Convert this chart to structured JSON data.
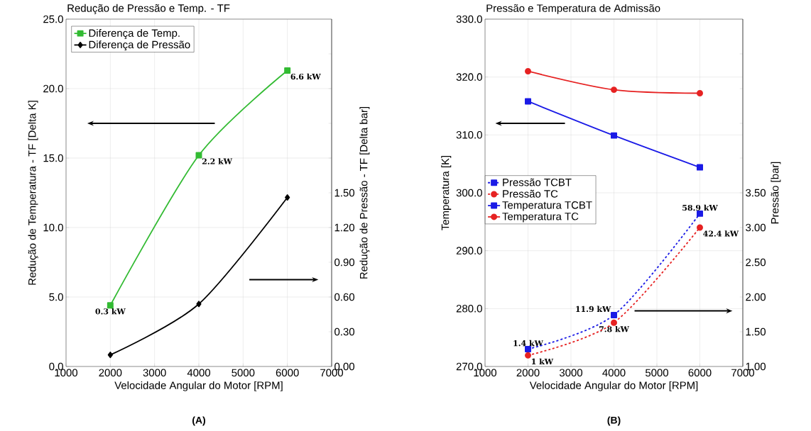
{
  "chart_data": [
    {
      "type": "line",
      "title": "Redução de Pressão e Temp. - TF",
      "xlabel": "Velocidade Angular do Motor [RPM]",
      "ylabel": "Redução de Temperatura - TF [Delta K]",
      "y2label": "Redução de Pressão - TF [Delta bar]",
      "x": [
        2000,
        4000,
        6000
      ],
      "xlim": [
        1000,
        7000
      ],
      "xticks": [
        1000,
        2000,
        3000,
        4000,
        5000,
        6000,
        7000
      ],
      "ylim": [
        0,
        25
      ],
      "yticks": [
        {
          "value": 0,
          "label": "0.0"
        },
        {
          "value": 5,
          "label": "5.0"
        },
        {
          "value": 10,
          "label": "10.0"
        },
        {
          "value": 15,
          "label": "15.0"
        },
        {
          "value": 20,
          "label": "20.0"
        },
        {
          "value": 25,
          "label": "25.0"
        }
      ],
      "y2lim": [
        0,
        3
      ],
      "y2ticks": [
        {
          "value": 0,
          "label": "0.00"
        },
        {
          "value": 0.3,
          "label": "0.30"
        },
        {
          "value": 0.6,
          "label": "0.60"
        },
        {
          "value": 0.9,
          "label": "0.90"
        },
        {
          "value": 1.2,
          "label": "1.20"
        },
        {
          "value": 1.5,
          "label": "1.50"
        },
        {
          "value": 1.8,
          "label": null
        },
        {
          "value": 2.1,
          "label": null
        },
        {
          "value": 2.4,
          "label": null
        },
        {
          "value": 2.7,
          "label": null
        }
      ],
      "grid": true,
      "legend": "top left",
      "series": [
        {
          "name": "Diferença de Temp.",
          "color": "#33bb33",
          "values": [
            4.4,
            15.2,
            21.3
          ],
          "marker": "square",
          "line_style": "solid"
        },
        {
          "name": "Diferença de Pressão",
          "color": "#000000",
          "values": [
            0.1,
            0.54,
            1.46
          ],
          "axis": "y2",
          "marker": "diamond",
          "line_style": "solid"
        }
      ],
      "annotations": [
        "(A)",
        {
          "text": "0.3 kW",
          "x": 2000,
          "y": 4.4
        },
        {
          "text": "2.2 kW",
          "x": 4000,
          "y": 15.2
        },
        {
          "text": "6.6 kW",
          "x": 6000,
          "y": 21.3
        }
      ]
    },
    {
      "type": "line",
      "title": "Pressão e Temperatura de Admissão",
      "xlabel": "Velocidade Angular do Motor [RPM]",
      "ylabel": "Temperatura [K]",
      "y2label": "Pressão [bar]",
      "x": [
        2000,
        4000,
        6000
      ],
      "xlim": [
        1000,
        7000
      ],
      "xticks": [
        1000,
        2000,
        3000,
        4000,
        5000,
        6000,
        7000
      ],
      "ylim": [
        270,
        330
      ],
      "yticks": [
        {
          "value": 270,
          "label": "270.0"
        },
        {
          "value": 280,
          "label": "280.0"
        },
        {
          "value": 290,
          "label": "290.0"
        },
        {
          "value": 300,
          "label": "300.0"
        },
        {
          "value": 310,
          "label": "310.0"
        },
        {
          "value": 320,
          "label": "320.0"
        },
        {
          "value": 330,
          "label": "330.0"
        }
      ],
      "y2lim": [
        1,
        6
      ],
      "y2ticks": [
        {
          "value": 1,
          "label": "1.00"
        },
        {
          "value": 1.5,
          "label": "1.50"
        },
        {
          "value": 2,
          "label": "2.00"
        },
        {
          "value": 2.5,
          "label": "2.50"
        },
        {
          "value": 3,
          "label": "3.00"
        },
        {
          "value": 3.5,
          "label": "3.50"
        },
        {
          "value": 4,
          "label": null
        },
        {
          "value": 4.5,
          "label": null
        },
        {
          "value": 5,
          "label": null
        },
        {
          "value": 5.5,
          "label": null
        }
      ],
      "grid": true,
      "legend": "left",
      "series": [
        {
          "name": "Pressão TCBT",
          "color": "#1a1ae6",
          "values": [
            1.25,
            1.74,
            3.2
          ],
          "axis": "y2",
          "marker": "square",
          "line_style": "dashed"
        },
        {
          "name": "Pressão TC",
          "color": "#e62222",
          "values": [
            1.16,
            1.63,
            3.0
          ],
          "axis": "y2",
          "marker": "circle",
          "line_style": "dashed"
        },
        {
          "name": "Temperatura TCBT",
          "color": "#1a1ae6",
          "values": [
            315.8,
            309.9,
            304.4
          ],
          "marker": "square",
          "line_style": "solid"
        },
        {
          "name": "Temperatura TC",
          "color": "#e62222",
          "values": [
            321.0,
            317.8,
            317.2
          ],
          "marker": "circle",
          "line_style": "solid"
        }
      ],
      "annotations": [
        "(B)",
        {
          "text": "1.4 kW",
          "x": 2000,
          "y": 273.0
        },
        {
          "text": "11.9 kW",
          "x": 4000,
          "y": 278.9
        },
        {
          "text": "58.9 kW",
          "x": 6000,
          "y": 296.4
        },
        {
          "text": "1 kW",
          "x": 2000,
          "y": 271.9
        },
        {
          "text": "7.8 kW",
          "x": 4000,
          "y": 277.5
        },
        {
          "text": "42.4 kW",
          "x": 6000,
          "y": 294.0
        }
      ]
    }
  ]
}
